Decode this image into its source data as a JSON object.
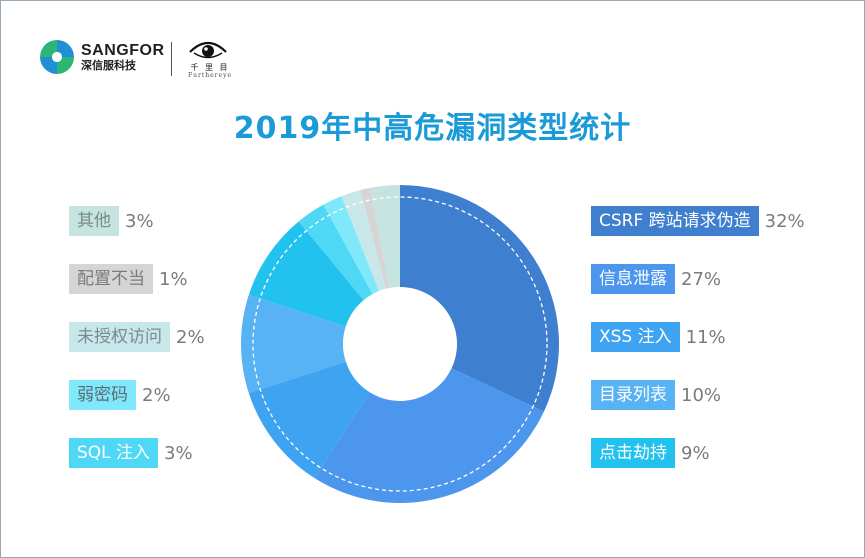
{
  "header": {
    "brand_name": "SANGFOR",
    "brand_sub": "深信服科技",
    "partner_cn": "千 里 目",
    "partner_en": "Furthereye"
  },
  "title": "2019年中高危漏洞类型统计",
  "chart_data": {
    "type": "pie",
    "variant": "donut",
    "start": "12 o'clock, clockwise",
    "slices": [
      {
        "label": "CSRF 跨站请求伪造",
        "value": 32,
        "display": "32%",
        "color": "#3f7fd0",
        "text_color": "#ffffff"
      },
      {
        "label": "信息泄露",
        "value": 27,
        "display": "27%",
        "color": "#4c96ee",
        "text_color": "#ffffff"
      },
      {
        "label": "XSS 注入",
        "value": 11,
        "display": "11%",
        "color": "#3ea3f1",
        "text_color": "#ffffff"
      },
      {
        "label": "目录列表",
        "value": 10,
        "display": "10%",
        "color": "#57b3f3",
        "text_color": "#ffffff"
      },
      {
        "label": "点击劫持",
        "value": 9,
        "display": "9%",
        "color": "#22c2ee",
        "text_color": "#ffffff"
      },
      {
        "label": "SQL 注入",
        "value": 3,
        "display": "3%",
        "color": "#4fd8f6",
        "text_color": "#ffffff"
      },
      {
        "label": "弱密码",
        "value": 2,
        "display": "2%",
        "color": "#7fe9fb",
        "text_color": "#5b6b72"
      },
      {
        "label": "未授权访问",
        "value": 2,
        "display": "2%",
        "color": "#c8e7ea",
        "text_color": "#7b8a8e"
      },
      {
        "label": "配置不当",
        "value": 1,
        "display": "1%",
        "color": "#d5d5d5",
        "text_color": "#7b7b7b"
      },
      {
        "label": "其他",
        "value": 3,
        "display": "3%",
        "color": "#c5e4e0",
        "text_color": "#7b8a88"
      }
    ]
  }
}
